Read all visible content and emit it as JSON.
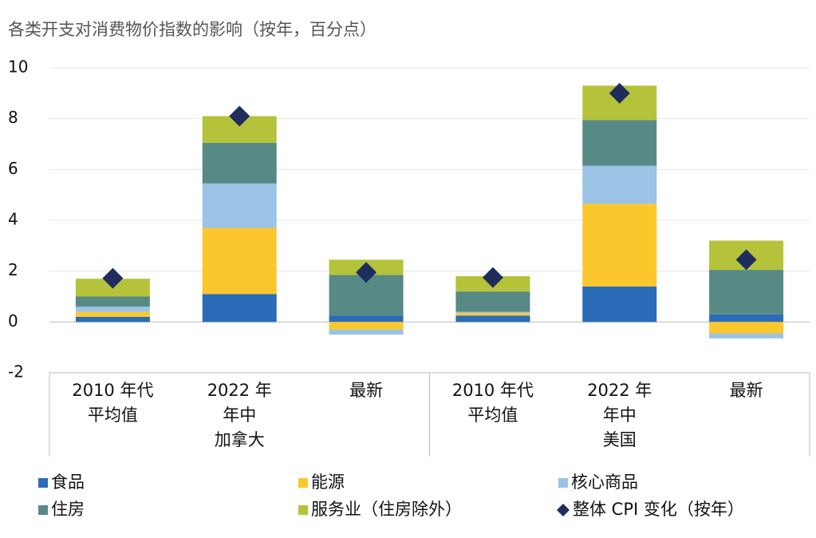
{
  "chart_data": {
    "type": "stacked_bar",
    "title": "各类开支对消费物价指数的影响（按年，百分点）",
    "categories": [
      [
        "2010 年代",
        "平均值"
      ],
      [
        "2022 年",
        "年中"
      ],
      [
        "最新"
      ],
      [
        "2010 年代",
        "平均值"
      ],
      [
        "2022 年",
        "年中"
      ],
      [
        "最新"
      ]
    ],
    "groups": [
      "加拿大",
      "美国"
    ],
    "series": [
      {
        "name": "食品",
        "color": "#2b6cb8",
        "values": [
          0.2,
          1.1,
          0.25,
          0.25,
          1.4,
          0.3
        ]
      },
      {
        "name": "能源",
        "color": "#fcc72c",
        "values": [
          0.2,
          2.6,
          -0.3,
          0.1,
          3.25,
          -0.45
        ]
      },
      {
        "name": "核心商品",
        "color": "#9ac3e6",
        "values": [
          0.2,
          1.75,
          -0.2,
          0.05,
          1.5,
          -0.2
        ]
      },
      {
        "name": "住房",
        "color": "#578985",
        "values": [
          0.4,
          1.6,
          1.6,
          0.8,
          1.8,
          1.75
        ]
      },
      {
        "name": "服务业（住房除外）",
        "color": "#b5c33b",
        "values": [
          0.7,
          1.05,
          0.6,
          0.6,
          1.35,
          1.15
        ]
      }
    ],
    "cpi": {
      "name": "整体 CPI 变化（按年）",
      "color": "#1f2d5c",
      "values": [
        1.72,
        8.1,
        1.95,
        1.75,
        9.0,
        2.45
      ]
    },
    "ylim": [
      -2,
      10
    ],
    "yticks": [
      -2,
      0,
      2,
      4,
      6,
      8,
      10
    ],
    "grid": true
  }
}
